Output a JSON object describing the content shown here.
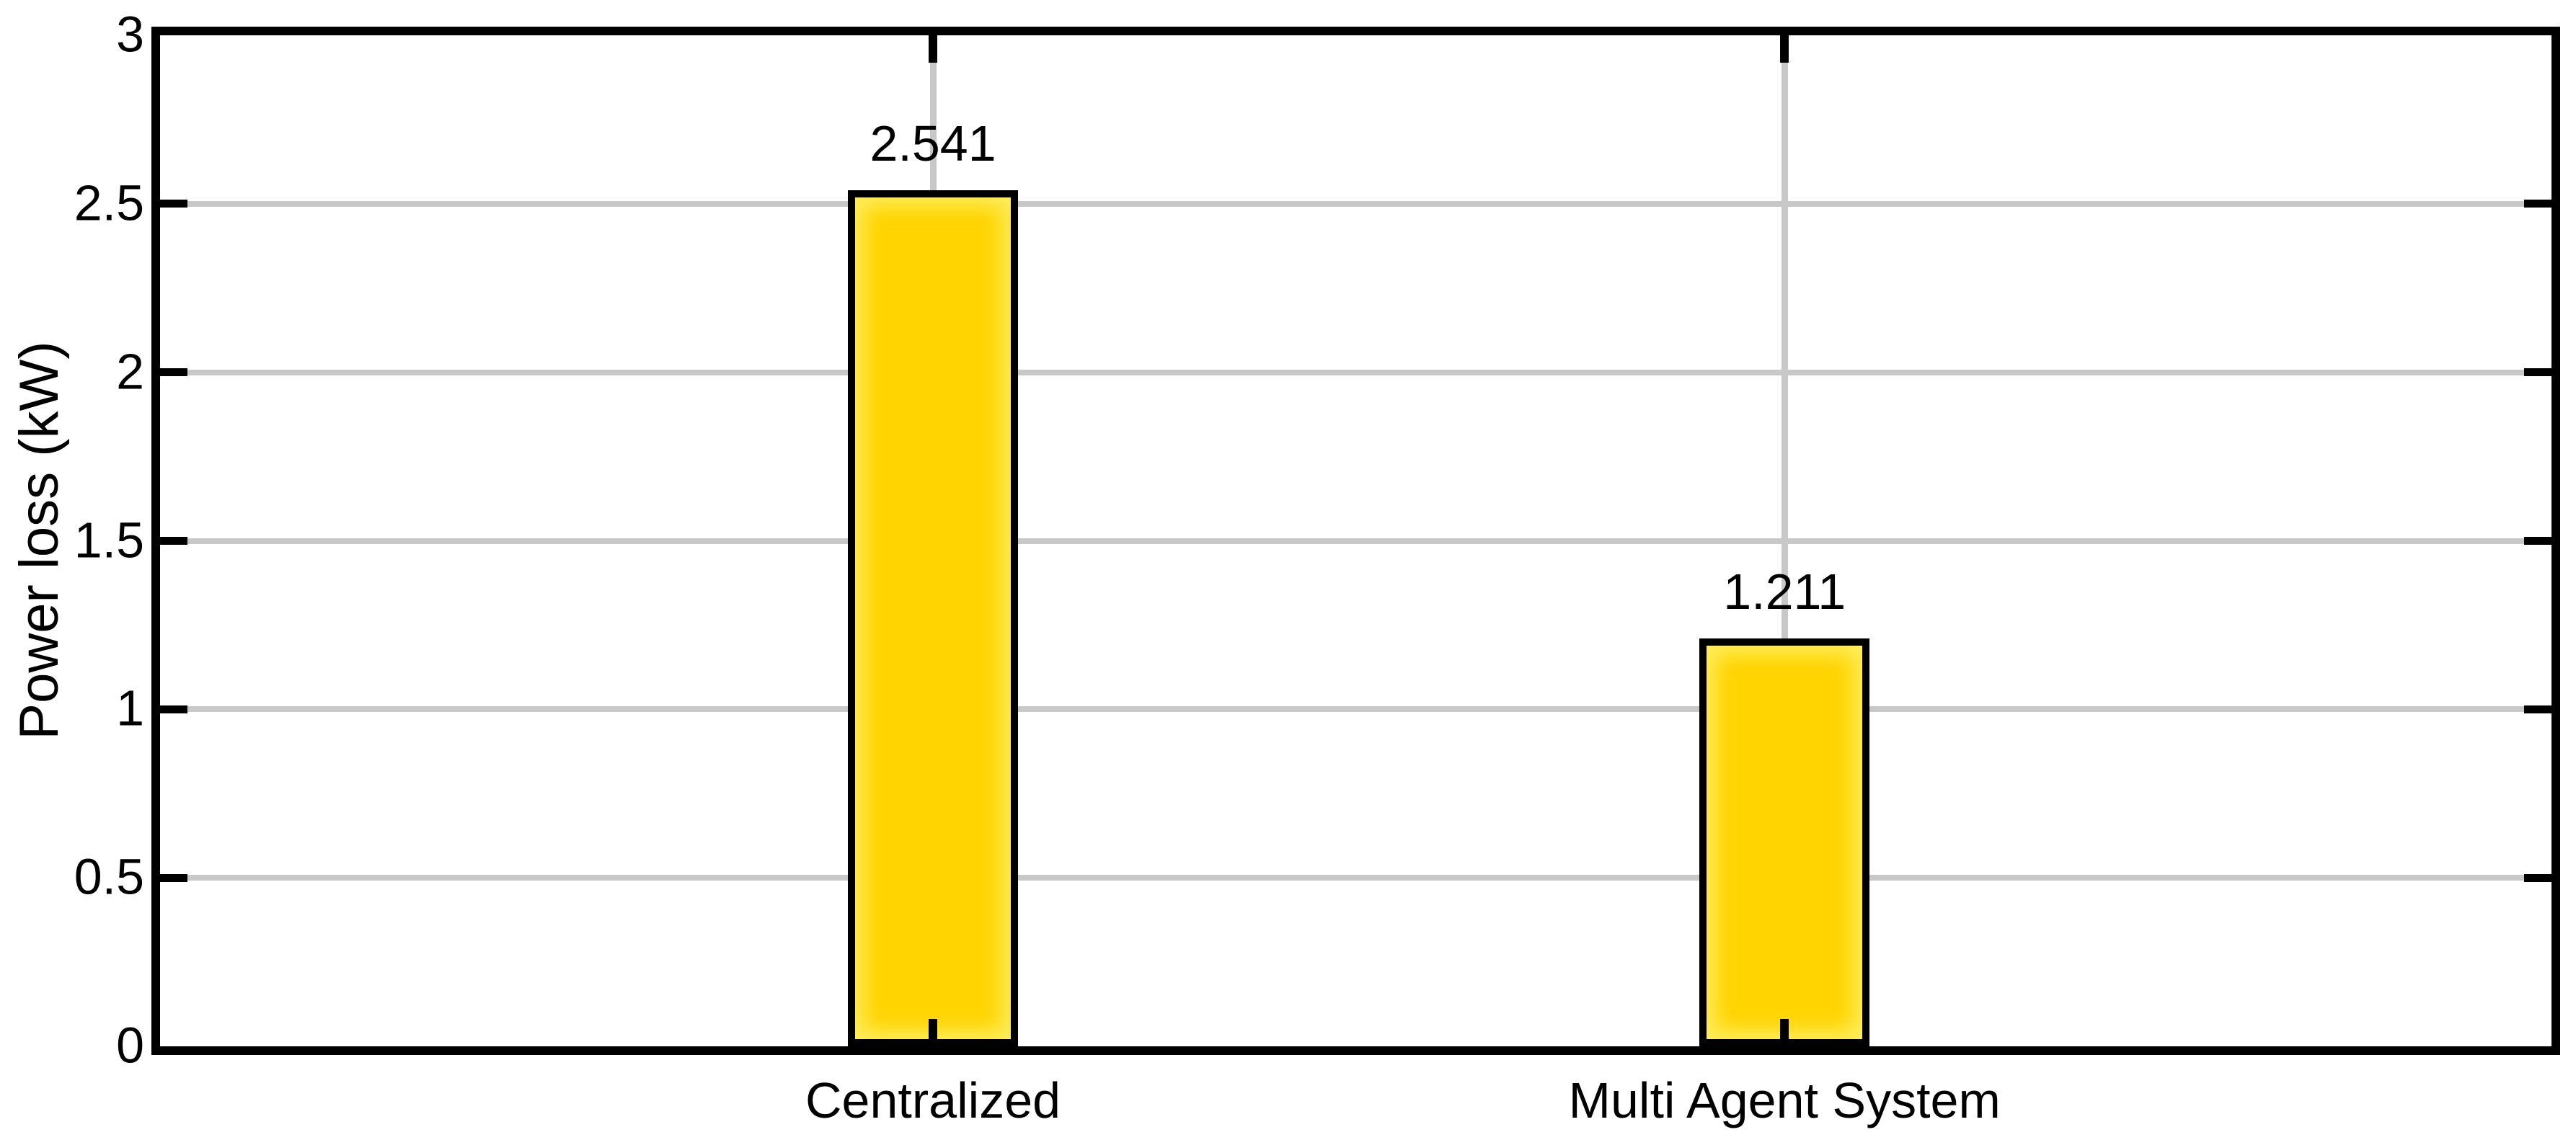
{
  "chart_data": {
    "type": "bar",
    "title": "",
    "xlabel": "",
    "ylabel": "Power loss (kW)",
    "categories": [
      "Centralized",
      "Multi Agent System"
    ],
    "values": [
      2.541,
      1.211
    ],
    "bar_labels": [
      "2.541",
      "1.211"
    ],
    "ylim": [
      0,
      3
    ],
    "yticks": [
      0,
      0.5,
      1,
      1.5,
      2,
      2.5,
      3
    ],
    "ytick_labels": [
      "0",
      "0.5",
      "1",
      "1.5",
      "2",
      "2.5",
      "3"
    ],
    "grid": "on",
    "legend": "none",
    "box": "on",
    "tick_direction": "in",
    "colors": {
      "bar_fill": "#FFD400",
      "bar_edge": "#000000",
      "bar_inner_glow": "#FFF26E",
      "grid_line": "#C8C8C8",
      "axis_frame": "#000000",
      "text": "#000000",
      "background": "#FFFFFF"
    }
  }
}
